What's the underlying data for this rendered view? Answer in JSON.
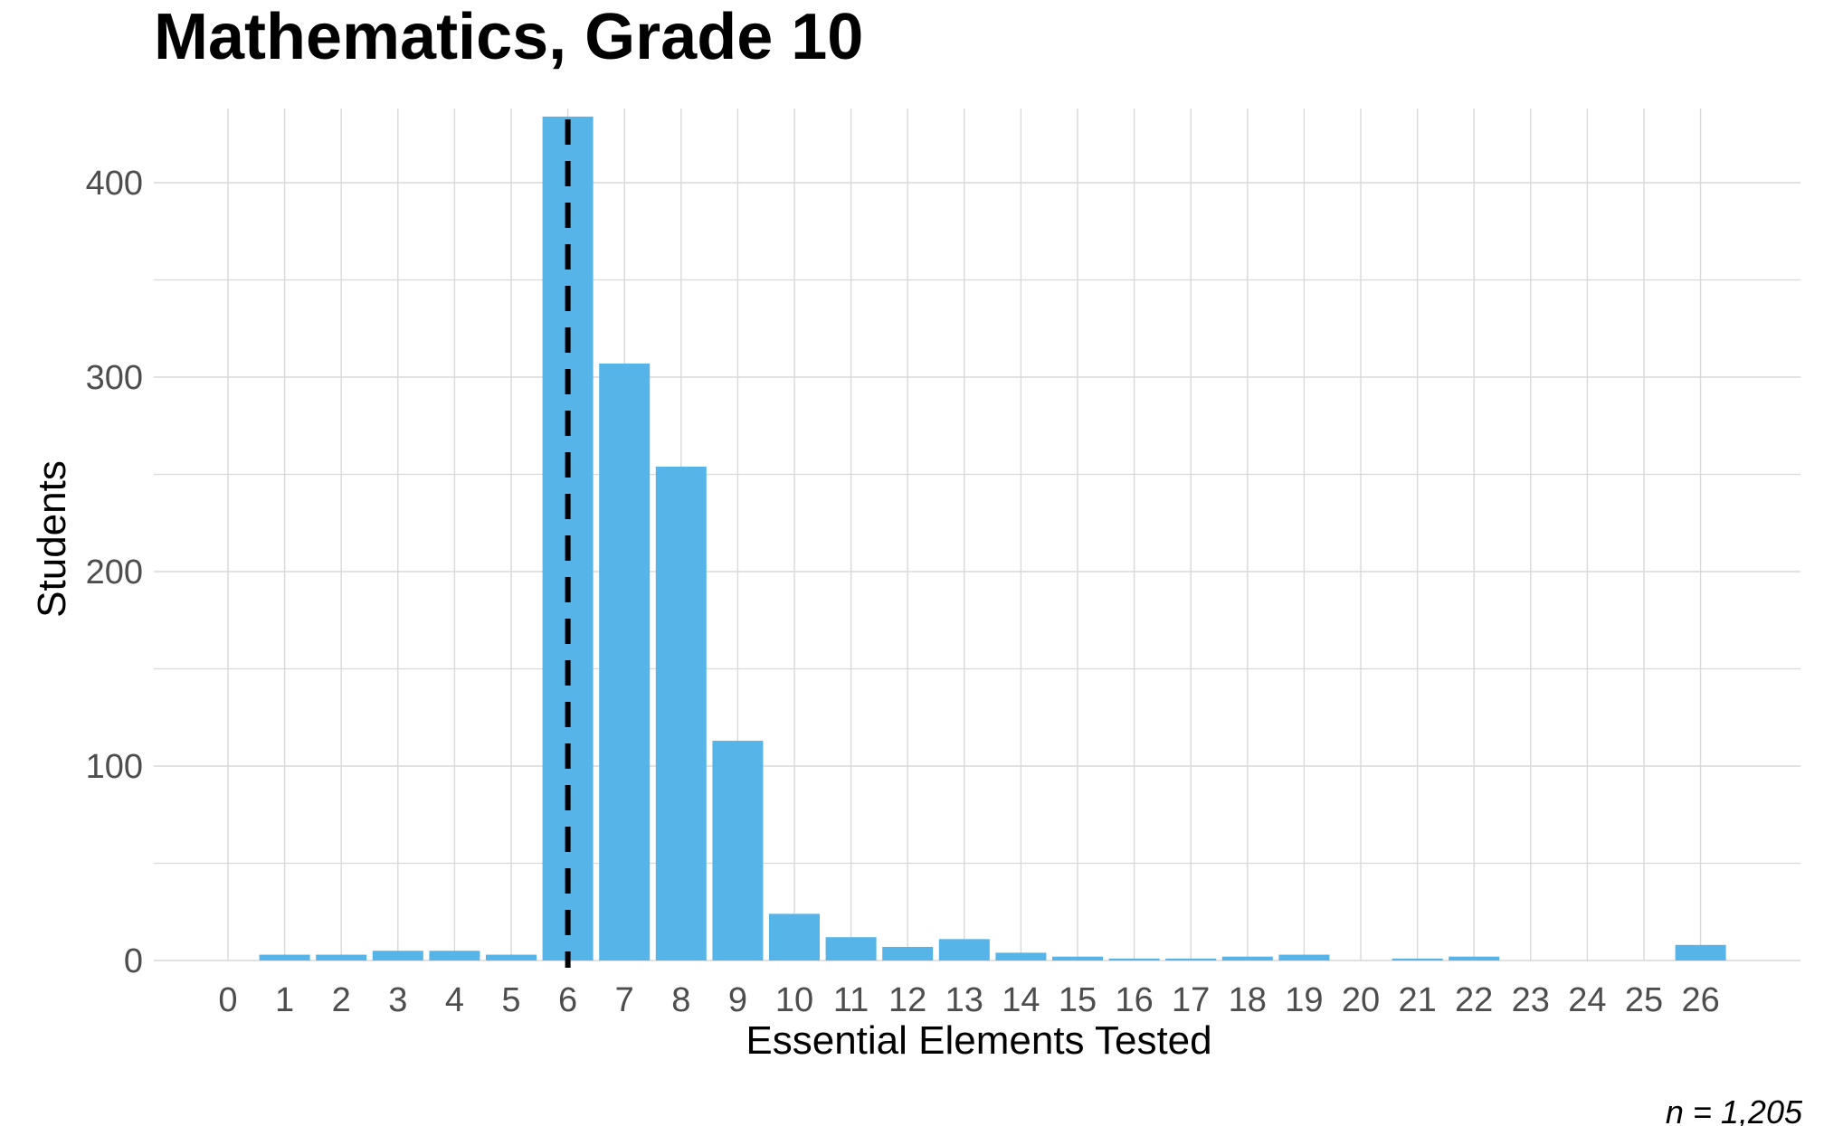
{
  "chart_data": {
    "type": "bar",
    "title": "Mathematics, Grade 10",
    "xlabel": "Essential Elements Tested",
    "ylabel": "Students",
    "caption": "n = 1,205",
    "categories": [
      "0",
      "1",
      "2",
      "3",
      "4",
      "5",
      "6",
      "7",
      "8",
      "9",
      "10",
      "11",
      "12",
      "13",
      "14",
      "15",
      "16",
      "17",
      "18",
      "19",
      "20",
      "21",
      "22",
      "23",
      "24",
      "25",
      "26"
    ],
    "values": [
      0,
      3,
      3,
      5,
      5,
      3,
      434,
      307,
      254,
      113,
      24,
      12,
      7,
      11,
      4,
      2,
      1,
      1,
      2,
      3,
      0,
      1,
      2,
      0,
      0,
      0,
      8
    ],
    "ylim": [
      0,
      440
    ],
    "yticks": [
      0,
      100,
      200,
      300,
      400
    ],
    "reference_line": {
      "x": 6,
      "style": "dashed",
      "color": "#000000"
    },
    "bar_color": "#56B4E9",
    "grid": true,
    "legend": "none"
  }
}
